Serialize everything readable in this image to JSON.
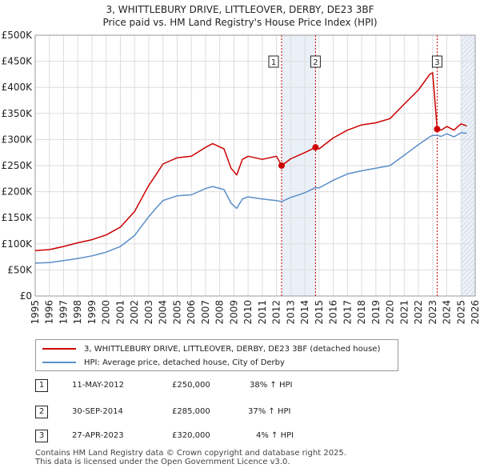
{
  "header": {
    "title": "3, WHITTLEBURY DRIVE, LITTLEOVER, DERBY, DE23 3BF",
    "subtitle": "Price paid vs. HM Land Registry's House Price Index (HPI)"
  },
  "colors": {
    "property": "#cc0000",
    "hpi": "#5b8ec9",
    "grid": "#dddddd",
    "highlight": "#dce6f2",
    "marker_line": "#cc0000"
  },
  "chart_data": {
    "type": "line",
    "title": "3, WHITTLEBURY DRIVE, LITTLEOVER, DERBY, DE23 3BF",
    "subtitle": "Price paid vs. HM Land Registry's House Price Index (HPI)",
    "xlabel": "",
    "ylabel": "",
    "xlim": [
      1995,
      2026
    ],
    "ylim": [
      0,
      500000
    ],
    "y_ticks": [
      {
        "value": 0,
        "label": "£0"
      },
      {
        "value": 50000,
        "label": "£50K"
      },
      {
        "value": 100000,
        "label": "£100K"
      },
      {
        "value": 150000,
        "label": "£150K"
      },
      {
        "value": 200000,
        "label": "£200K"
      },
      {
        "value": 250000,
        "label": "£250K"
      },
      {
        "value": 300000,
        "label": "£300K"
      },
      {
        "value": 350000,
        "label": "£350K"
      },
      {
        "value": 400000,
        "label": "£400K"
      },
      {
        "value": 450000,
        "label": "£450K"
      },
      {
        "value": 500000,
        "label": "£500K"
      }
    ],
    "x_ticks": [
      1995,
      1996,
      1997,
      1998,
      1999,
      2000,
      2001,
      2002,
      2003,
      2004,
      2005,
      2006,
      2007,
      2008,
      2009,
      2010,
      2011,
      2012,
      2013,
      2014,
      2015,
      2016,
      2017,
      2018,
      2019,
      2020,
      2021,
      2022,
      2023,
      2024,
      2025,
      2026
    ],
    "grid": true,
    "forecast_band": [
      2025.0,
      2026.0
    ],
    "series": [
      {
        "name": "3, WHITTLEBURY DRIVE, LITTLEOVER, DERBY, DE23 3BF (detached house)",
        "x": [
          1995.0,
          1996.0,
          1997.0,
          1998.0,
          1999.0,
          2000.0,
          2001.0,
          2002.0,
          2003.0,
          2003.5,
          2004.0,
          2005.0,
          2006.0,
          2007.0,
          2007.5,
          2008.3,
          2008.8,
          2009.2,
          2009.6,
          2010.0,
          2011.0,
          2012.0,
          2012.36,
          2013.0,
          2014.0,
          2014.75,
          2015.0,
          2016.0,
          2017.0,
          2018.0,
          2019.0,
          2020.0,
          2021.0,
          2022.0,
          2022.8,
          2023.0,
          2023.32,
          2023.6,
          2024.0,
          2024.5,
          2025.0,
          2025.4
        ],
        "values": [
          87000,
          89000,
          95000,
          102000,
          108000,
          117000,
          132000,
          162000,
          212000,
          232000,
          253000,
          265000,
          268000,
          285000,
          292000,
          282000,
          245000,
          232000,
          262000,
          268000,
          262000,
          268000,
          250000,
          263000,
          275000,
          285000,
          282000,
          303000,
          318000,
          328000,
          332000,
          340000,
          368000,
          395000,
          425000,
          428000,
          320000,
          318000,
          325000,
          318000,
          330000,
          326000
        ]
      },
      {
        "name": "HPI: Average price, detached house, City of Derby",
        "x": [
          1995.0,
          1996.0,
          1997.0,
          1998.0,
          1999.0,
          2000.0,
          2001.0,
          2002.0,
          2003.0,
          2003.5,
          2004.0,
          2005.0,
          2006.0,
          2007.0,
          2007.5,
          2008.3,
          2008.8,
          2009.2,
          2009.6,
          2010.0,
          2011.0,
          2012.0,
          2012.36,
          2013.0,
          2014.0,
          2014.75,
          2015.0,
          2016.0,
          2017.0,
          2018.0,
          2019.0,
          2020.0,
          2021.0,
          2022.0,
          2022.8,
          2023.0,
          2023.32,
          2023.6,
          2024.0,
          2024.5,
          2025.0,
          2025.4
        ],
        "values": [
          63000,
          64000,
          68000,
          72000,
          77000,
          84000,
          95000,
          116000,
          152000,
          168000,
          183000,
          192000,
          194000,
          206000,
          210000,
          204000,
          178000,
          168000,
          186000,
          190000,
          186000,
          183000,
          181000,
          189000,
          198000,
          208000,
          207000,
          222000,
          234000,
          240000,
          245000,
          250000,
          270000,
          290000,
          305000,
          308000,
          308000,
          306000,
          311000,
          305000,
          313000,
          312000
        ]
      }
    ],
    "sales": [
      {
        "label": "1",
        "x": 2012.36,
        "value": 250000
      },
      {
        "label": "2",
        "x": 2014.75,
        "value": 285000
      },
      {
        "label": "3",
        "x": 2023.32,
        "value": 320000
      }
    ]
  },
  "legend": {
    "property_label": "3, WHITTLEBURY DRIVE, LITTLEOVER, DERBY, DE23 3BF (detached house)",
    "hpi_label": "HPI: Average price, detached house, City of Derby"
  },
  "sales_table": [
    {
      "num": "1",
      "date": "11-MAY-2012",
      "price": "£250,000",
      "hpi": "38% ↑ HPI"
    },
    {
      "num": "2",
      "date": "30-SEP-2014",
      "price": "£285,000",
      "hpi": "37% ↑ HPI"
    },
    {
      "num": "3",
      "date": "27-APR-2023",
      "price": "£320,000",
      "hpi": "4% ↑ HPI"
    }
  ],
  "footer": {
    "line1": "Contains HM Land Registry data © Crown copyright and database right 2025.",
    "line2": "This data is licensed under the Open Government Licence v3.0."
  }
}
